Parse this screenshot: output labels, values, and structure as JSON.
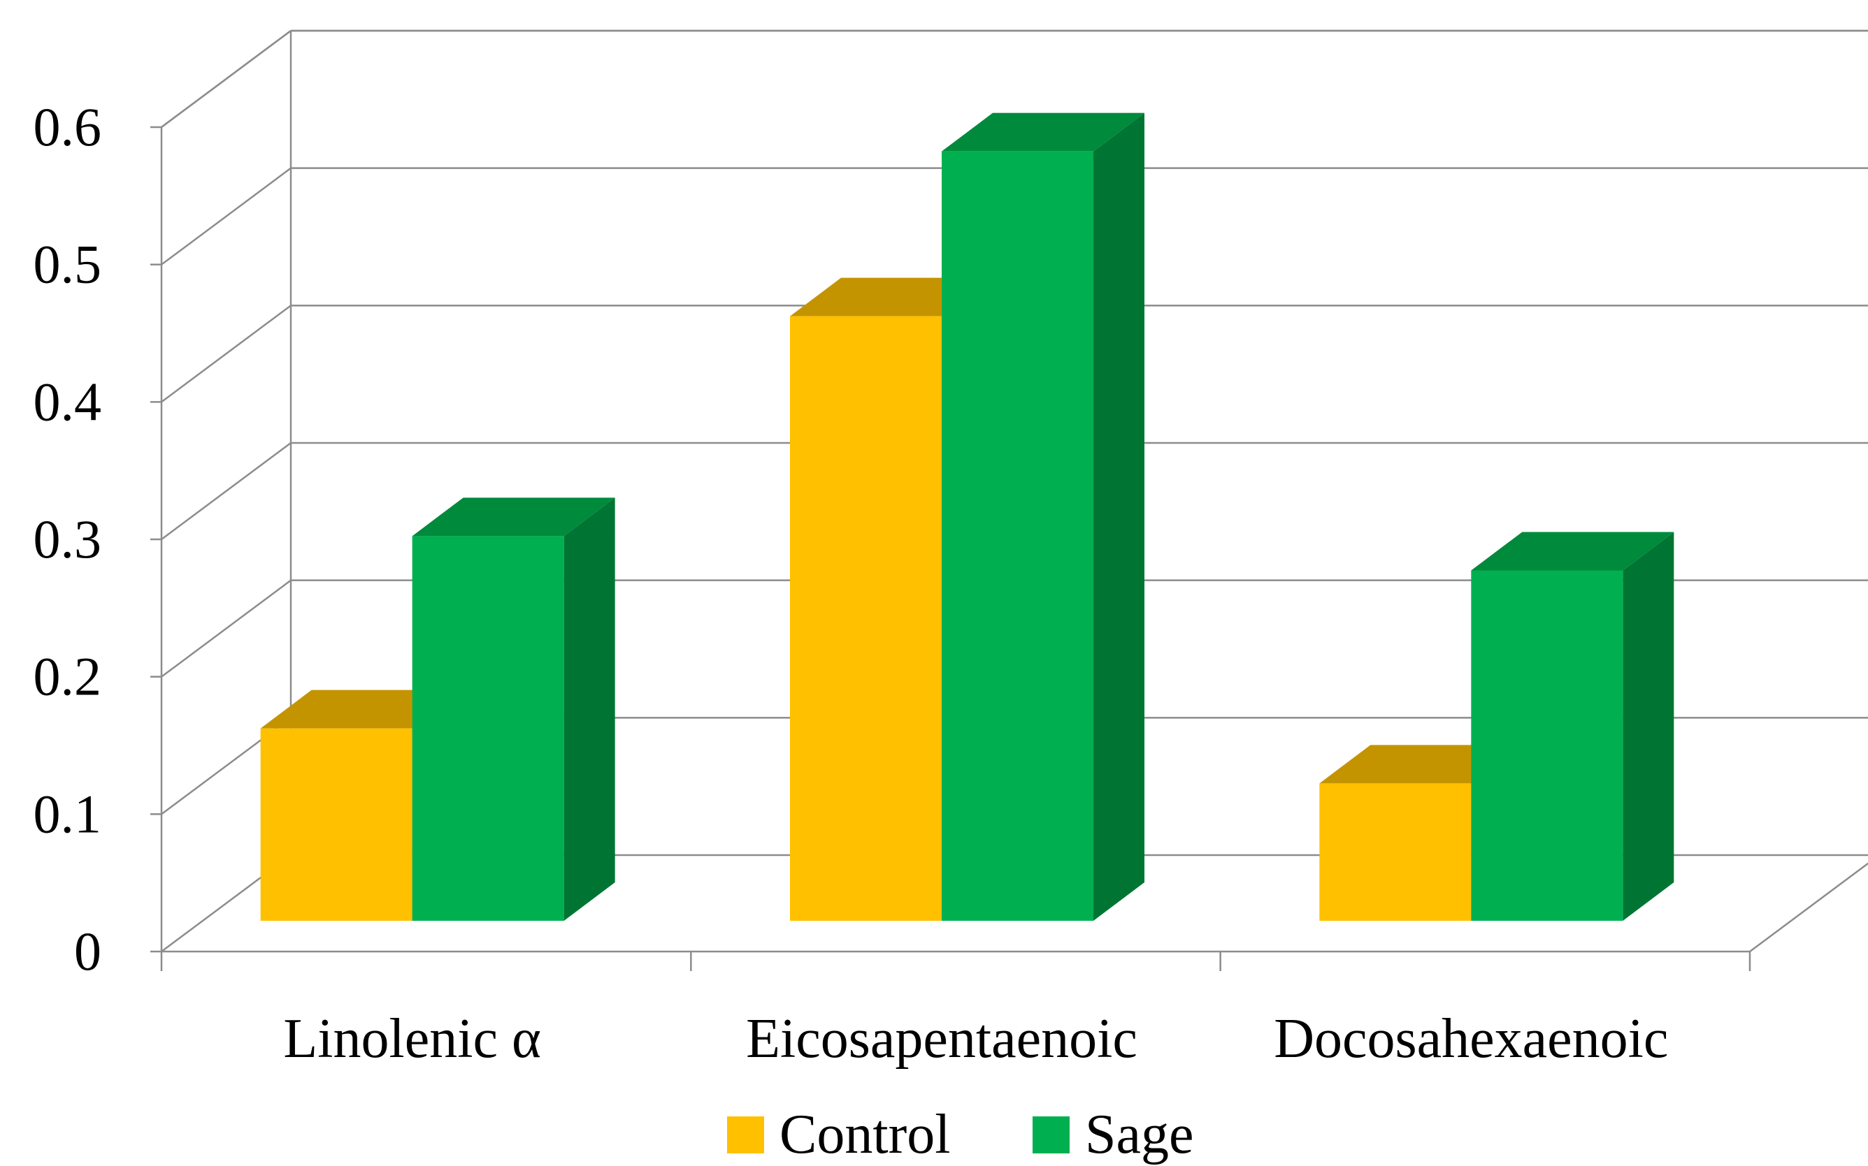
{
  "chart_data": {
    "type": "bar",
    "style": "3d-clustered-column",
    "categories": [
      "Linolenic α",
      "Eicosapentaenoic",
      "Docosahexaenoic"
    ],
    "series": [
      {
        "name": "Control",
        "values": [
          0.14,
          0.44,
          0.1
        ],
        "color": "#FFC000",
        "top_color": "#C49400",
        "side_color": "#B08600"
      },
      {
        "name": "Sage",
        "values": [
          0.28,
          0.56,
          0.255
        ],
        "color": "#00B050",
        "top_color": "#008A3C",
        "side_color": "#007533"
      }
    ],
    "y_ticks": [
      "0",
      "0.1",
      "0.2",
      "0.3",
      "0.4",
      "0.5",
      "0.6"
    ],
    "ylim": [
      0,
      0.6
    ],
    "grid": true,
    "legend_position": "bottom"
  }
}
